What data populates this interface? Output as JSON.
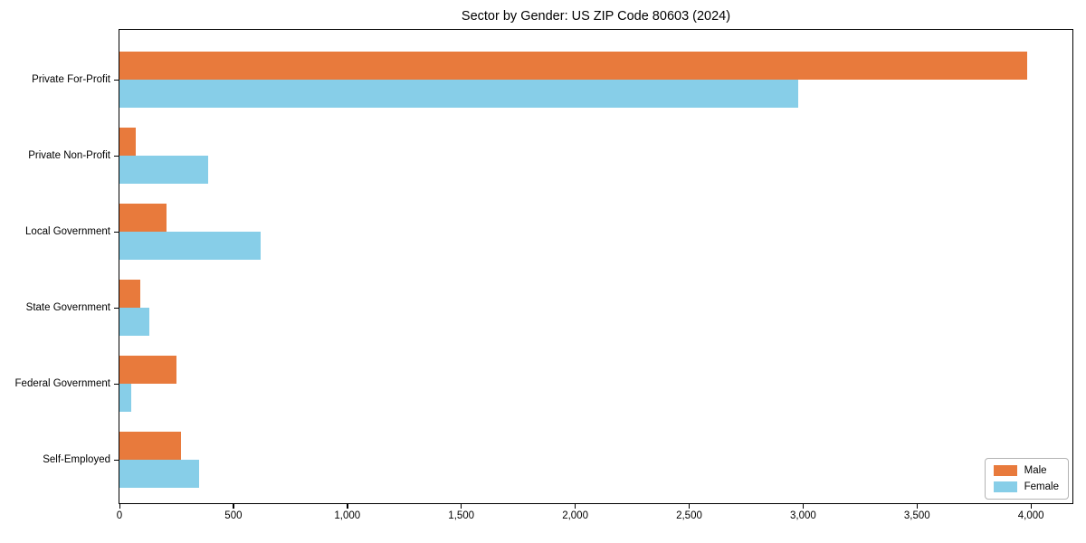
{
  "chart_data": {
    "type": "bar",
    "orientation": "horizontal",
    "title": "Sector by Gender: US ZIP Code 80603 (2024)",
    "categories": [
      "Private For-Profit",
      "Private Non-Profit",
      "Local Government",
      "State Government",
      "Federal Government",
      "Self-Employed"
    ],
    "series": [
      {
        "name": "Male",
        "color": "#E87A3C",
        "values": [
          3985,
          70,
          205,
          90,
          250,
          270
        ]
      },
      {
        "name": "Female",
        "color": "#87CEE8",
        "values": [
          2980,
          390,
          620,
          130,
          50,
          350
        ]
      }
    ],
    "xlabel": "",
    "ylabel": "",
    "xlim": [
      0,
      4182
    ],
    "xticks": {
      "values": [
        0,
        500,
        1000,
        1500,
        2000,
        2500,
        3000,
        3500,
        4000
      ],
      "labels": [
        "0",
        "500",
        "1,000",
        "1,500",
        "2,000",
        "2,500",
        "3,000",
        "3,500",
        "4,000"
      ]
    },
    "grid": false,
    "legend_position": "lower right"
  }
}
